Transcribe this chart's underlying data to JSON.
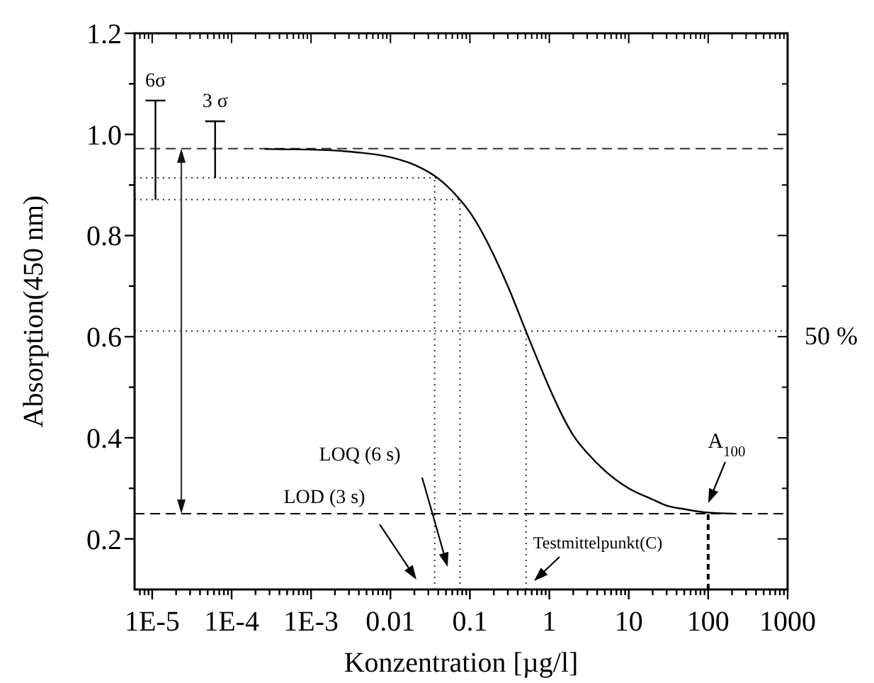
{
  "chart_data": {
    "type": "line",
    "xlabel": "Konzentration [µg/l]",
    "ylabel": "Absorption(450 nm)",
    "log": "x",
    "grid": false,
    "marker": "none",
    "xlim": [
      6e-06,
      1000
    ],
    "ylim": [
      0.1,
      1.2
    ],
    "xticks": [
      {
        "value": 1e-05,
        "label": "1E-5"
      },
      {
        "value": 0.0001,
        "label": "1E-4"
      },
      {
        "value": 0.001,
        "label": "1E-3"
      },
      0.01,
      0.1,
      1,
      10,
      100,
      1000,
      {
        "value": 7e-06,
        "label": null
      },
      {
        "value": 8e-06,
        "label": null
      },
      {
        "value": 9e-06,
        "label": null
      },
      {
        "value": 2e-05,
        "label": null
      },
      {
        "value": 3e-05,
        "label": null
      },
      {
        "value": 4e-05,
        "label": null
      },
      {
        "value": 5e-05,
        "label": null
      },
      {
        "value": 6e-05,
        "label": null
      },
      {
        "value": 7e-05,
        "label": null
      },
      {
        "value": 8e-05,
        "label": null
      },
      {
        "value": 9e-05,
        "label": null
      },
      {
        "value": 0.0002,
        "label": null
      },
      {
        "value": 0.0003,
        "label": null
      },
      {
        "value": 0.0004,
        "label": null
      },
      {
        "value": 0.0005,
        "label": null
      },
      {
        "value": 0.0006,
        "label": null
      },
      {
        "value": 0.0007,
        "label": null
      },
      {
        "value": 0.0008,
        "label": null
      },
      {
        "value": 0.0009,
        "label": null
      },
      {
        "value": 0.002,
        "label": null
      },
      {
        "value": 0.003,
        "label": null
      },
      {
        "value": 0.004,
        "label": null
      },
      {
        "value": 0.005,
        "label": null
      },
      {
        "value": 0.006,
        "label": null
      },
      {
        "value": 0.007,
        "label": null
      },
      {
        "value": 0.008,
        "label": null
      },
      {
        "value": 0.009,
        "label": null
      },
      {
        "value": 0.02,
        "label": null
      },
      {
        "value": 0.03,
        "label": null
      },
      {
        "value": 0.04,
        "label": null
      },
      {
        "value": 0.05,
        "label": null
      },
      {
        "value": 0.06,
        "label": null
      },
      {
        "value": 0.07,
        "label": null
      },
      {
        "value": 0.08,
        "label": null
      },
      {
        "value": 0.09,
        "label": null
      },
      {
        "value": 0.2,
        "label": null
      },
      {
        "value": 0.3,
        "label": null
      },
      {
        "value": 0.4,
        "label": null
      },
      {
        "value": 0.5,
        "label": null
      },
      {
        "value": 0.6,
        "label": null
      },
      {
        "value": 0.7,
        "label": null
      },
      {
        "value": 0.8,
        "label": null
      },
      {
        "value": 0.9,
        "label": null
      },
      {
        "value": 2,
        "label": null
      },
      {
        "value": 3,
        "label": null
      },
      {
        "value": 4,
        "label": null
      },
      {
        "value": 5,
        "label": null
      },
      {
        "value": 6,
        "label": null
      },
      {
        "value": 7,
        "label": null
      },
      {
        "value": 8,
        "label": null
      },
      {
        "value": 9,
        "label": null
      },
      {
        "value": 20,
        "label": null
      },
      {
        "value": 30,
        "label": null
      },
      {
        "value": 40,
        "label": null
      },
      {
        "value": 50,
        "label": null
      },
      {
        "value": 60,
        "label": null
      },
      {
        "value": 70,
        "label": null
      },
      {
        "value": 80,
        "label": null
      },
      {
        "value": 90,
        "label": null
      },
      {
        "value": 200,
        "label": null
      },
      {
        "value": 300,
        "label": null
      },
      {
        "value": 400,
        "label": null
      },
      {
        "value": 500,
        "label": null
      },
      {
        "value": 600,
        "label": null
      },
      {
        "value": 700,
        "label": null
      },
      {
        "value": 800,
        "label": null
      },
      {
        "value": 900,
        "label": null
      }
    ],
    "yticks": [
      0.2,
      0.4,
      0.6,
      0.8,
      {
        "value": 1,
        "label": "1.0"
      },
      1.2,
      {
        "value": 0.3,
        "label": null
      },
      {
        "value": 0.5,
        "label": null
      },
      {
        "value": 0.7,
        "label": null
      },
      {
        "value": 0.9,
        "label": null
      },
      {
        "value": 1.1,
        "label": null
      }
    ],
    "series": [
      {
        "color": "#000000",
        "line_style": "solid",
        "x": [
          0.00026,
          0.001,
          0.003,
          0.01,
          0.02,
          0.036,
          0.05,
          0.075,
          0.1,
          0.15,
          0.2,
          0.3,
          0.51,
          0.7,
          1,
          1.5,
          2,
          3,
          5,
          10,
          20,
          30,
          50,
          100,
          210
        ],
        "values": [
          0.971,
          0.97,
          0.966,
          0.955,
          0.94,
          0.918,
          0.9,
          0.871,
          0.846,
          0.8,
          0.761,
          0.7,
          0.61,
          0.557,
          0.499,
          0.44,
          0.405,
          0.37,
          0.335,
          0.3,
          0.278,
          0.266,
          0.259,
          0.252,
          0.25
        ]
      },
      {
        "name": "6σ",
        "color": "#000000",
        "line_style": "solid",
        "x": [
          1.1e-05,
          1.1e-05
        ],
        "values": [
          0.871,
          1.067
        ]
      },
      {
        "name": "3 σ",
        "color": "#000000",
        "line_style": "solid",
        "x": [
          6.2e-05,
          6.2e-05
        ],
        "values": [
          0.914,
          1.026
        ]
      }
    ],
    "ref_lines": [
      {
        "axis": "y",
        "value": 0.972,
        "line_style": "dashed",
        "color": "#333333"
      },
      {
        "axis": "y",
        "value": 0.25,
        "line_style": "dashed",
        "color": "#000000"
      },
      {
        "axis": "y",
        "value": 0.914,
        "line_style": "dotted",
        "color": "#333333"
      },
      {
        "axis": "y",
        "value": 0.871,
        "line_style": "dotted",
        "color": "#333333"
      },
      {
        "axis": "y",
        "value": 0.611,
        "line_style": "dotted",
        "color": "#333333"
      },
      {
        "axis": "x",
        "value": 0.036,
        "line_style": "dotted",
        "color": "#333333"
      },
      {
        "axis": "x",
        "value": 0.075,
        "line_style": "dotted",
        "color": "#333333"
      },
      {
        "axis": "x",
        "value": 0.51,
        "line_style": "dotted",
        "color": "#333333"
      },
      {
        "axis": "x",
        "value": 100,
        "line_style": "dashed",
        "color": "#000000"
      }
    ],
    "annotations": [
      "LOD (3 s)",
      "LOQ (6 s)",
      "Testmittelpunkt(C)",
      "A$_{100}$",
      "50 %"
    ]
  }
}
